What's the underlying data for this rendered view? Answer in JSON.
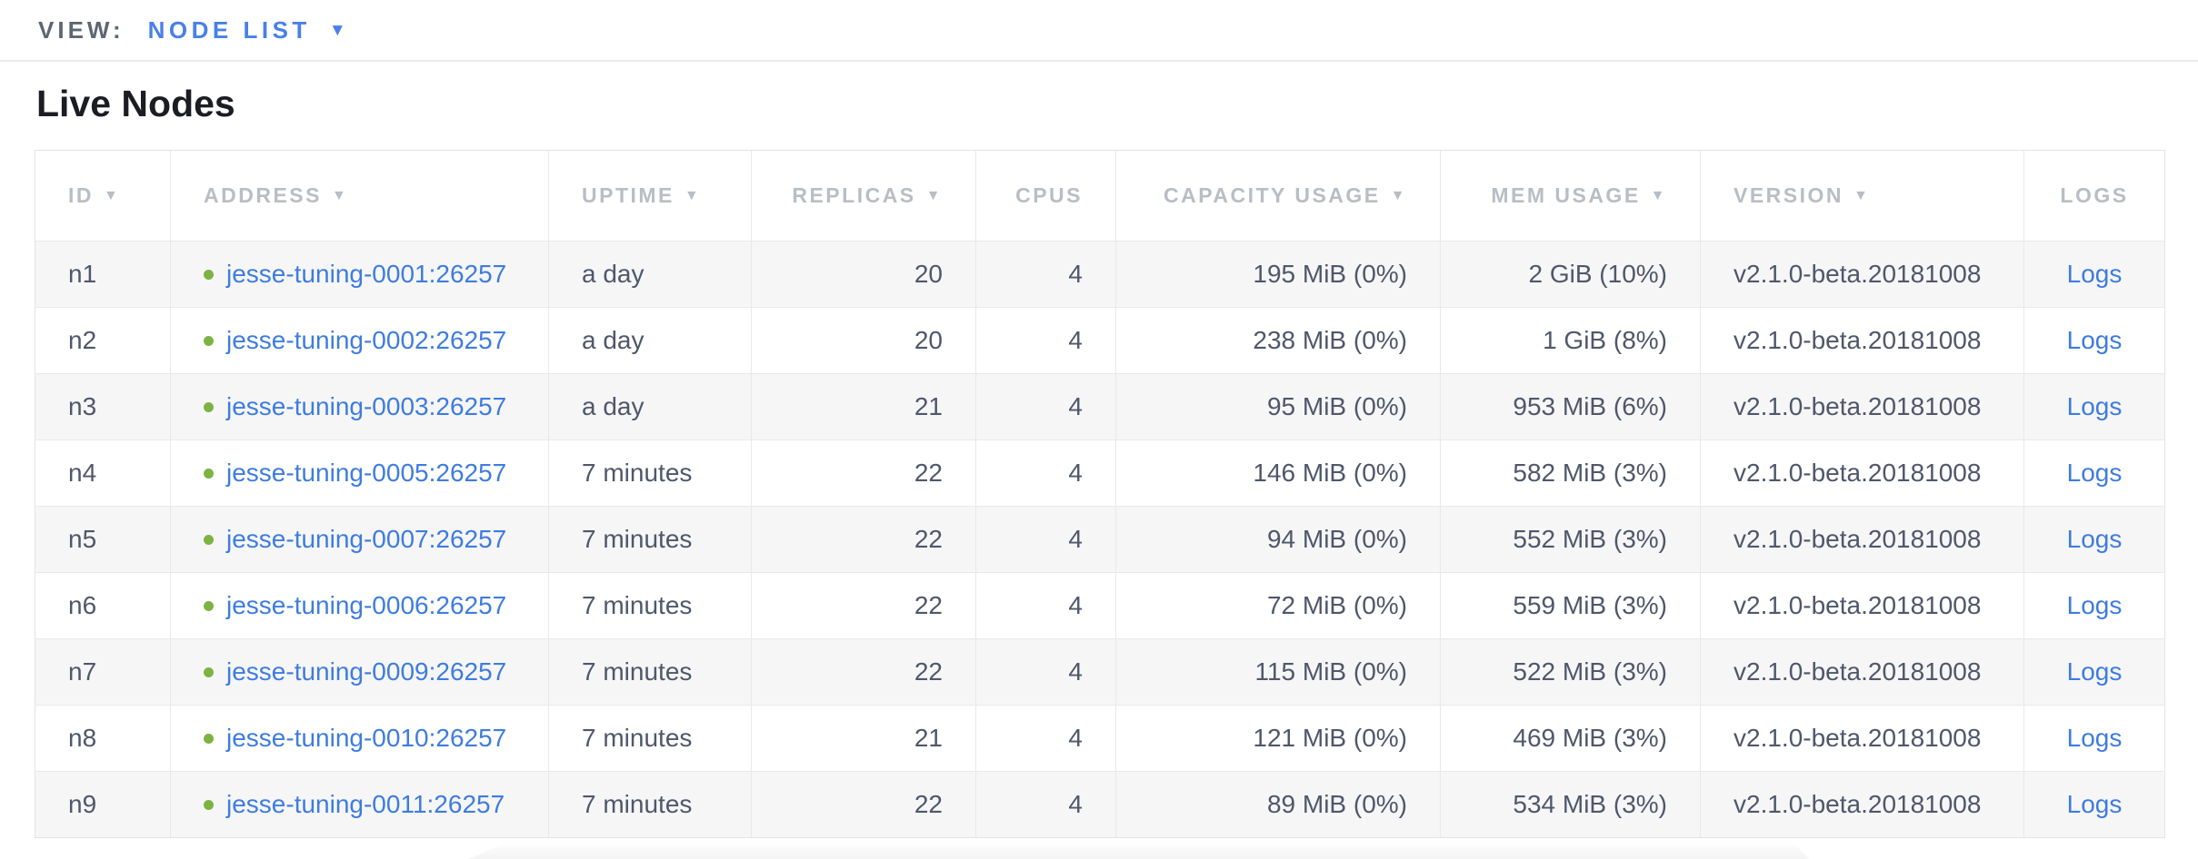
{
  "view_bar": {
    "label": "VIEW:",
    "selected_view": "NODE LIST",
    "caret_icon": "▼"
  },
  "page": {
    "title": "Live Nodes"
  },
  "colors": {
    "link_blue": "#3e7ce0",
    "view_dropdown_blue": "#4880e8",
    "node_status_green": "#7db343",
    "header_text_gray": "#b9bdc4",
    "cell_text": "#4f576b",
    "row_alt_background": "#f6f6f7"
  },
  "table": {
    "sort_icon": "▼",
    "columns": [
      {
        "label": "ID",
        "sortable": true,
        "align": "left"
      },
      {
        "label": "ADDRESS",
        "sortable": true,
        "align": "left"
      },
      {
        "label": "UPTIME",
        "sortable": true,
        "align": "left"
      },
      {
        "label": "REPLICAS",
        "sortable": true,
        "align": "right"
      },
      {
        "label": "CPUS",
        "sortable": false,
        "align": "right"
      },
      {
        "label": "CAPACITY USAGE",
        "sortable": true,
        "align": "right"
      },
      {
        "label": "MEM USAGE",
        "sortable": true,
        "align": "right"
      },
      {
        "label": "VERSION",
        "sortable": true,
        "align": "left"
      },
      {
        "label": "LOGS",
        "sortable": false,
        "align": "center"
      }
    ],
    "rows": [
      {
        "id": "n1",
        "address": "jesse-tuning-0001:26257",
        "uptime": "a day",
        "replicas": "20",
        "cpus": "4",
        "capacity_usage": "195 MiB (0%)",
        "mem_usage": "2 GiB (10%)",
        "version": "v2.1.0-beta.20181008",
        "logs_label": "Logs"
      },
      {
        "id": "n2",
        "address": "jesse-tuning-0002:26257",
        "uptime": "a day",
        "replicas": "20",
        "cpus": "4",
        "capacity_usage": "238 MiB (0%)",
        "mem_usage": "1 GiB (8%)",
        "version": "v2.1.0-beta.20181008",
        "logs_label": "Logs"
      },
      {
        "id": "n3",
        "address": "jesse-tuning-0003:26257",
        "uptime": "a day",
        "replicas": "21",
        "cpus": "4",
        "capacity_usage": "95 MiB (0%)",
        "mem_usage": "953 MiB (6%)",
        "version": "v2.1.0-beta.20181008",
        "logs_label": "Logs"
      },
      {
        "id": "n4",
        "address": "jesse-tuning-0005:26257",
        "uptime": "7 minutes",
        "replicas": "22",
        "cpus": "4",
        "capacity_usage": "146 MiB (0%)",
        "mem_usage": "582 MiB (3%)",
        "version": "v2.1.0-beta.20181008",
        "logs_label": "Logs"
      },
      {
        "id": "n5",
        "address": "jesse-tuning-0007:26257",
        "uptime": "7 minutes",
        "replicas": "22",
        "cpus": "4",
        "capacity_usage": "94 MiB (0%)",
        "mem_usage": "552 MiB (3%)",
        "version": "v2.1.0-beta.20181008",
        "logs_label": "Logs"
      },
      {
        "id": "n6",
        "address": "jesse-tuning-0006:26257",
        "uptime": "7 minutes",
        "replicas": "22",
        "cpus": "4",
        "capacity_usage": "72 MiB (0%)",
        "mem_usage": "559 MiB (3%)",
        "version": "v2.1.0-beta.20181008",
        "logs_label": "Logs"
      },
      {
        "id": "n7",
        "address": "jesse-tuning-0009:26257",
        "uptime": "7 minutes",
        "replicas": "22",
        "cpus": "4",
        "capacity_usage": "115 MiB (0%)",
        "mem_usage": "522 MiB (3%)",
        "version": "v2.1.0-beta.20181008",
        "logs_label": "Logs"
      },
      {
        "id": "n8",
        "address": "jesse-tuning-0010:26257",
        "uptime": "7 minutes",
        "replicas": "21",
        "cpus": "4",
        "capacity_usage": "121 MiB (0%)",
        "mem_usage": "469 MiB (3%)",
        "version": "v2.1.0-beta.20181008",
        "logs_label": "Logs"
      },
      {
        "id": "n9",
        "address": "jesse-tuning-0011:26257",
        "uptime": "7 minutes",
        "replicas": "22",
        "cpus": "4",
        "capacity_usage": "89 MiB (0%)",
        "mem_usage": "534 MiB (3%)",
        "version": "v2.1.0-beta.20181008",
        "logs_label": "Logs"
      }
    ]
  }
}
